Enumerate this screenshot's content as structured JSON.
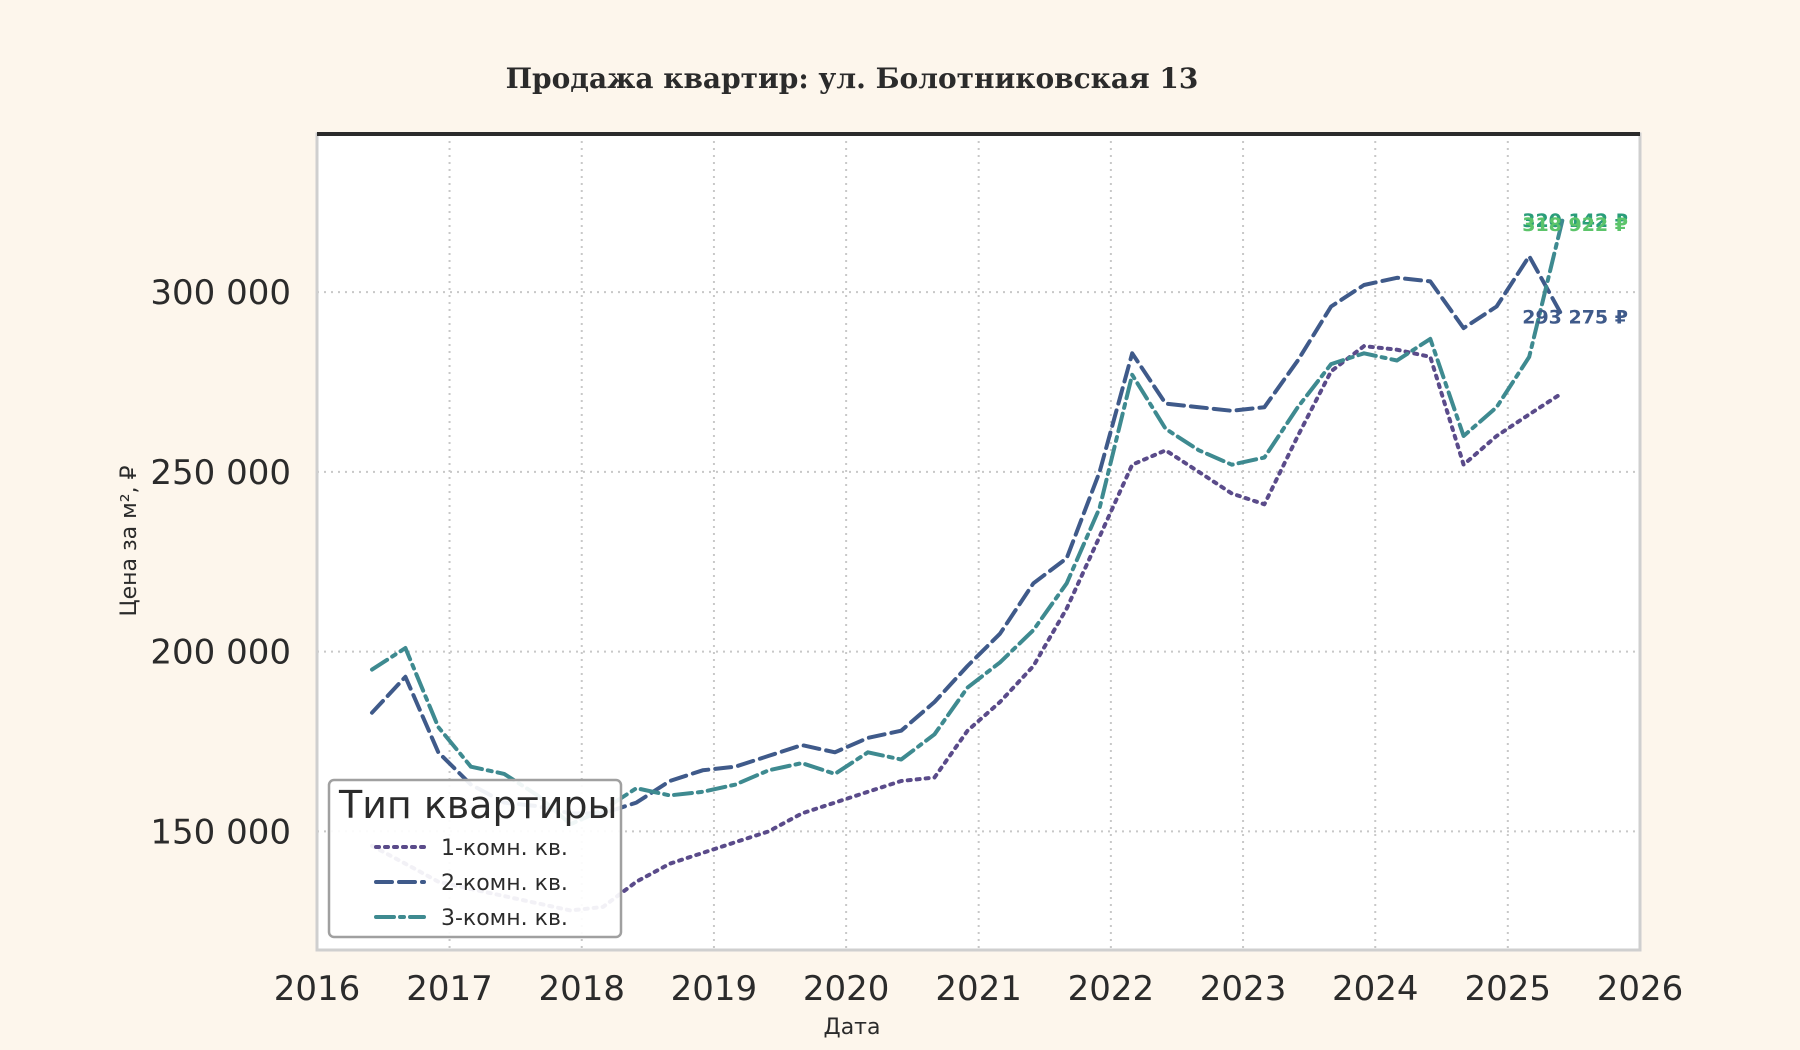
{
  "chart_data": {
    "type": "line",
    "title": "Продажа квартир: ул. Болотниковская 13",
    "xlabel": "Дата",
    "ylabel": "Цена за м², ₽",
    "xlim": [
      "2016-01-01",
      "2026-01-01"
    ],
    "ylim": [
      117000,
      344000
    ],
    "grid": true,
    "x_ticks": [
      "2016",
      "2017",
      "2018",
      "2019",
      "2020",
      "2021",
      "2022",
      "2023",
      "2024",
      "2025",
      "2026"
    ],
    "y_ticks": [
      150000,
      200000,
      250000,
      300000
    ],
    "y_tick_labels": [
      "150 000",
      "200 000",
      "250 000",
      "300 000"
    ],
    "legend": {
      "title": "Тип квартиры",
      "position": "lower-left"
    },
    "series": [
      {
        "name": "1-комн. кв.",
        "color": "#5a4b8a",
        "style": "dotted",
        "points": [
          [
            "2016-06-01",
            146000
          ],
          [
            "2016-09-01",
            141000
          ],
          [
            "2016-12-01",
            136000
          ],
          [
            "2017-03-01",
            134000
          ],
          [
            "2017-06-01",
            132000
          ],
          [
            "2017-09-01",
            130000
          ],
          [
            "2017-12-01",
            128000
          ],
          [
            "2018-03-01",
            129000
          ],
          [
            "2018-06-01",
            136000
          ],
          [
            "2018-09-01",
            141000
          ],
          [
            "2018-12-01",
            144000
          ],
          [
            "2019-03-01",
            147000
          ],
          [
            "2019-06-01",
            150000
          ],
          [
            "2019-09-01",
            155000
          ],
          [
            "2019-12-01",
            158000
          ],
          [
            "2020-03-01",
            161000
          ],
          [
            "2020-06-01",
            164000
          ],
          [
            "2020-09-01",
            165000
          ],
          [
            "2020-12-01",
            178000
          ],
          [
            "2021-03-01",
            186000
          ],
          [
            "2021-06-01",
            196000
          ],
          [
            "2021-09-01",
            212000
          ],
          [
            "2021-12-01",
            232000
          ],
          [
            "2022-03-01",
            252000
          ],
          [
            "2022-06-01",
            256000
          ],
          [
            "2022-09-01",
            250000
          ],
          [
            "2022-12-01",
            244000
          ],
          [
            "2023-03-01",
            241000
          ],
          [
            "2023-06-01",
            260000
          ],
          [
            "2023-09-01",
            278000
          ],
          [
            "2023-12-01",
            285000
          ],
          [
            "2024-03-01",
            284000
          ],
          [
            "2024-06-01",
            282000
          ],
          [
            "2024-09-01",
            252000
          ],
          [
            "2024-12-01",
            260000
          ],
          [
            "2025-03-01",
            266000
          ],
          [
            "2025-06-01",
            272000
          ]
        ]
      },
      {
        "name": "2-комн. кв.",
        "color": "#3f5a8a",
        "style": "dashed",
        "points": [
          [
            "2016-06-01",
            183000
          ],
          [
            "2016-09-01",
            193000
          ],
          [
            "2016-12-01",
            172000
          ],
          [
            "2017-03-01",
            163000
          ],
          [
            "2017-06-01",
            158000
          ],
          [
            "2017-09-01",
            157000
          ],
          [
            "2017-12-01",
            155000
          ],
          [
            "2018-03-01",
            155000
          ],
          [
            "2018-06-01",
            158000
          ],
          [
            "2018-09-01",
            164000
          ],
          [
            "2018-12-01",
            167000
          ],
          [
            "2019-03-01",
            168000
          ],
          [
            "2019-06-01",
            171000
          ],
          [
            "2019-09-01",
            174000
          ],
          [
            "2019-12-01",
            172000
          ],
          [
            "2020-03-01",
            176000
          ],
          [
            "2020-06-01",
            178000
          ],
          [
            "2020-09-01",
            186000
          ],
          [
            "2020-12-01",
            196000
          ],
          [
            "2021-03-01",
            205000
          ],
          [
            "2021-06-01",
            219000
          ],
          [
            "2021-09-01",
            226000
          ],
          [
            "2021-12-01",
            250000
          ],
          [
            "2022-03-01",
            283000
          ],
          [
            "2022-06-01",
            269000
          ],
          [
            "2022-09-01",
            268000
          ],
          [
            "2022-12-01",
            267000
          ],
          [
            "2023-03-01",
            268000
          ],
          [
            "2023-06-01",
            281000
          ],
          [
            "2023-09-01",
            296000
          ],
          [
            "2023-12-01",
            302000
          ],
          [
            "2024-03-01",
            304000
          ],
          [
            "2024-06-01",
            303000
          ],
          [
            "2024-09-01",
            290000
          ],
          [
            "2024-12-01",
            296000
          ],
          [
            "2025-03-01",
            310000
          ],
          [
            "2025-06-01",
            293275
          ]
        ]
      },
      {
        "name": "3-комн. кв.",
        "color": "#3e8a90",
        "style": "dashdot",
        "points": [
          [
            "2016-06-01",
            195000
          ],
          [
            "2016-09-01",
            201000
          ],
          [
            "2016-12-01",
            179000
          ],
          [
            "2017-03-01",
            168000
          ],
          [
            "2017-06-01",
            166000
          ],
          [
            "2017-09-01",
            160000
          ],
          [
            "2017-12-01",
            152000
          ],
          [
            "2018-03-01",
            156000
          ],
          [
            "2018-06-01",
            162000
          ],
          [
            "2018-09-01",
            160000
          ],
          [
            "2018-12-01",
            161000
          ],
          [
            "2019-03-01",
            163000
          ],
          [
            "2019-06-01",
            167000
          ],
          [
            "2019-09-01",
            169000
          ],
          [
            "2019-12-01",
            166000
          ],
          [
            "2020-03-01",
            172000
          ],
          [
            "2020-06-01",
            170000
          ],
          [
            "2020-09-01",
            177000
          ],
          [
            "2020-12-01",
            190000
          ],
          [
            "2021-03-01",
            197000
          ],
          [
            "2021-06-01",
            206000
          ],
          [
            "2021-09-01",
            219000
          ],
          [
            "2021-12-01",
            240000
          ],
          [
            "2022-03-01",
            277000
          ],
          [
            "2022-06-01",
            262000
          ],
          [
            "2022-09-01",
            256000
          ],
          [
            "2022-12-01",
            252000
          ],
          [
            "2023-03-01",
            254000
          ],
          [
            "2023-06-01",
            268000
          ],
          [
            "2023-09-01",
            280000
          ],
          [
            "2023-12-01",
            283000
          ],
          [
            "2024-03-01",
            281000
          ],
          [
            "2024-06-01",
            287000
          ],
          [
            "2024-09-01",
            260000
          ],
          [
            "2024-12-01",
            268000
          ],
          [
            "2025-03-01",
            282000
          ],
          [
            "2025-06-01",
            320142
          ]
        ]
      }
    ],
    "annotations": [
      {
        "text": "320 142 ₽",
        "x": "2025-06-01",
        "y": 320142,
        "color": "#2a9d7a"
      },
      {
        "text": "318 922 ₽",
        "x": "2025-06-01",
        "y": 318922,
        "color": "#5cc46a"
      },
      {
        "text": "293 275 ₽",
        "x": "2025-06-01",
        "y": 293275,
        "color": "#3f5a8a"
      }
    ]
  }
}
